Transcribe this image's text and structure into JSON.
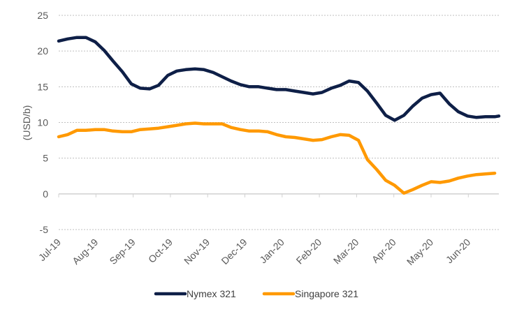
{
  "chart_data": {
    "type": "line",
    "title": "",
    "xlabel": "",
    "ylabel": "(USD/b)",
    "ylim": [
      -5,
      25
    ],
    "yticks": [
      -5,
      0,
      5,
      10,
      15,
      20,
      25
    ],
    "grid": true,
    "legend_position": "bottom",
    "x_tick_labels": [
      "Jul-19",
      "Aug-19",
      "Sep-19",
      "Oct-19",
      "Nov-19",
      "Dec-19",
      "Jan-20",
      "Feb-20",
      "Mar-20",
      "Apr-20",
      "May-20",
      "Jun-20"
    ],
    "x_range_months": [
      0,
      11.85
    ],
    "series": [
      {
        "name": "Nymex 321",
        "color": "#0e1f47",
        "x": [
          0,
          0.24,
          0.49,
          0.73,
          0.98,
          1.22,
          1.46,
          1.71,
          1.95,
          2.19,
          2.44,
          2.68,
          2.93,
          3.17,
          3.41,
          3.66,
          3.9,
          4.15,
          4.39,
          4.63,
          4.88,
          5.12,
          5.37,
          5.61,
          5.85,
          6.1,
          6.34,
          6.58,
          6.83,
          7.07,
          7.32,
          7.56,
          7.8,
          8.05,
          8.29,
          8.54,
          8.78,
          9.02,
          9.27,
          9.51,
          9.76,
          10,
          10.24,
          10.49,
          10.73,
          10.98,
          11.22,
          11.46,
          11.71,
          11.82
        ],
        "values": [
          21.4,
          21.7,
          21.9,
          21.9,
          21.3,
          20.1,
          18.6,
          17.1,
          15.4,
          14.8,
          14.7,
          15.2,
          16.6,
          17.2,
          17.4,
          17.5,
          17.4,
          17.0,
          16.4,
          15.8,
          15.3,
          15.0,
          15.0,
          14.8,
          14.6,
          14.6,
          14.4,
          14.2,
          14.0,
          14.2,
          14.8,
          15.2,
          15.8,
          15.6,
          14.4,
          12.7,
          11.0,
          10.3,
          11.0,
          12.3,
          13.4,
          13.9,
          14.1,
          12.6,
          11.5,
          10.9,
          10.7,
          10.8,
          10.8,
          10.9
        ]
      },
      {
        "name": "Singapore 321",
        "color": "#ff9900",
        "x": [
          0,
          0.24,
          0.49,
          0.73,
          0.98,
          1.22,
          1.46,
          1.71,
          1.95,
          2.19,
          2.44,
          2.68,
          2.93,
          3.17,
          3.41,
          3.66,
          3.9,
          4.15,
          4.39,
          4.63,
          4.88,
          5.12,
          5.37,
          5.61,
          5.85,
          6.1,
          6.34,
          6.58,
          6.83,
          7.07,
          7.32,
          7.56,
          7.8,
          8.05,
          8.29,
          8.54,
          8.78,
          9.02,
          9.27,
          9.51,
          9.76,
          10,
          10.24,
          10.49,
          10.73,
          10.98,
          11.22,
          11.46,
          11.71
        ],
        "values": [
          8.0,
          8.3,
          8.9,
          8.9,
          9.0,
          9.0,
          8.8,
          8.7,
          8.7,
          9.0,
          9.1,
          9.2,
          9.4,
          9.6,
          9.8,
          9.9,
          9.8,
          9.8,
          9.8,
          9.3,
          9.0,
          8.8,
          8.8,
          8.7,
          8.3,
          8.0,
          7.9,
          7.7,
          7.5,
          7.6,
          8.0,
          8.3,
          8.2,
          7.5,
          4.8,
          3.4,
          1.9,
          1.2,
          0.1,
          0.6,
          1.2,
          1.7,
          1.6,
          1.8,
          2.2,
          2.5,
          2.7,
          2.8,
          2.9
        ]
      }
    ]
  }
}
